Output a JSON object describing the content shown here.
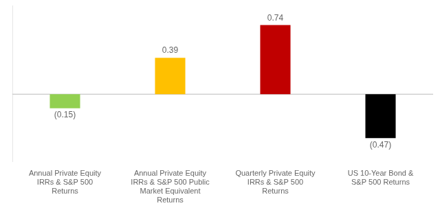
{
  "chart_data": {
    "type": "bar",
    "categories": [
      "Annual Private Equity\nIRRs & S&P 500\nReturns",
      "Annual Private Equity\nIRRs & S&P 500 Public\nMarket Equivalent\nReturns",
      "Quarterly Private Equity\nIRRs & S&P 500\nReturns",
      "US 10-Year Bond &\nS&P 500 Returns"
    ],
    "values": [
      -0.15,
      0.39,
      0.74,
      -0.47
    ],
    "value_labels": [
      "(0.15)",
      "0.39",
      "0.74",
      "(0.47)"
    ],
    "colors": [
      "#92d050",
      "#ffc000",
      "#c00000",
      "#000000"
    ],
    "ylim": [
      -0.72,
      0.95
    ],
    "data_labels": true,
    "grid": false,
    "tick_labels": "x"
  }
}
